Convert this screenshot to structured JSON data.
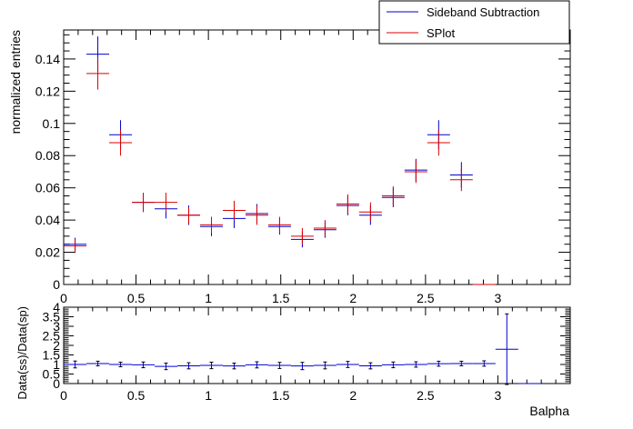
{
  "chart_data": [
    {
      "type": "scatter",
      "title": "",
      "xlabel": "",
      "ylabel": "normalized entries",
      "xlim": [
        0,
        3.5
      ],
      "ylim": [
        0,
        0.158
      ],
      "xticks": [
        "0",
        "0.5",
        "1",
        "1.5",
        "2",
        "2.5",
        "3"
      ],
      "yticks": [
        "0",
        "0.02",
        "0.04",
        "0.06",
        "0.08",
        "0.1",
        "0.12",
        "0.14"
      ],
      "bin_width": 0.157,
      "legend_position": "top-right",
      "series": [
        {
          "name": "Sideband Subtraction",
          "color": "#0000cc",
          "x": [
            0.079,
            0.236,
            0.393,
            0.55,
            0.707,
            0.864,
            1.021,
            1.178,
            1.335,
            1.492,
            1.649,
            1.806,
            1.963,
            2.12,
            2.277,
            2.434,
            2.591,
            2.748,
            2.905
          ],
          "y": [
            0.025,
            0.143,
            0.093,
            0.051,
            0.047,
            0.043,
            0.036,
            0.041,
            0.044,
            0.036,
            0.028,
            0.034,
            0.049,
            0.043,
            0.054,
            0.071,
            0.093,
            0.068,
            0.0
          ],
          "err": [
            0.004,
            0.011,
            0.009,
            0.006,
            0.006,
            0.006,
            0.006,
            0.006,
            0.006,
            0.005,
            0.005,
            0.005,
            0.006,
            0.006,
            0.006,
            0.007,
            0.009,
            0.008,
            0.0
          ]
        },
        {
          "name": "SPlot",
          "color": "#dd0000",
          "x": [
            0.079,
            0.236,
            0.393,
            0.55,
            0.707,
            0.864,
            1.021,
            1.178,
            1.335,
            1.492,
            1.649,
            1.806,
            1.963,
            2.12,
            2.277,
            2.434,
            2.591,
            2.748,
            2.905
          ],
          "y": [
            0.024,
            0.131,
            0.088,
            0.051,
            0.051,
            0.043,
            0.037,
            0.046,
            0.043,
            0.037,
            0.03,
            0.035,
            0.05,
            0.045,
            0.055,
            0.07,
            0.088,
            0.065,
            0.0
          ],
          "err": [
            0.004,
            0.01,
            0.008,
            0.006,
            0.006,
            0.005,
            0.005,
            0.006,
            0.006,
            0.005,
            0.005,
            0.005,
            0.006,
            0.006,
            0.006,
            0.007,
            0.008,
            0.007,
            0.0
          ]
        }
      ]
    },
    {
      "type": "scatter",
      "title": "",
      "xlabel": "Balpha",
      "ylabel": "Data(ss)/Data(sp)",
      "xlim": [
        0,
        3.5
      ],
      "ylim": [
        0,
        4
      ],
      "xticks": [
        "0",
        "0.5",
        "1",
        "1.5",
        "2",
        "2.5",
        "3"
      ],
      "yticks": [
        "0",
        "0.5",
        "1",
        "1.5",
        "2",
        "2.5",
        "3",
        "3.5",
        "4"
      ],
      "bin_width": 0.157,
      "series": [
        {
          "color": "#0000cc",
          "x": [
            0.079,
            0.236,
            0.393,
            0.55,
            0.707,
            0.864,
            1.021,
            1.178,
            1.335,
            1.492,
            1.649,
            1.806,
            1.963,
            2.12,
            2.277,
            2.434,
            2.591,
            2.748,
            2.905,
            3.062,
            3.219
          ],
          "y": [
            1.0,
            1.05,
            1.0,
            0.98,
            0.9,
            0.93,
            0.95,
            0.92,
            0.98,
            0.95,
            0.92,
            0.95,
            1.0,
            0.93,
            0.98,
            1.0,
            1.04,
            1.05,
            1.05,
            1.8,
            0.0
          ],
          "err": [
            0.18,
            0.12,
            0.12,
            0.15,
            0.17,
            0.16,
            0.17,
            0.15,
            0.16,
            0.16,
            0.19,
            0.18,
            0.16,
            0.16,
            0.15,
            0.14,
            0.13,
            0.12,
            0.14,
            1.85,
            0.0
          ]
        }
      ]
    }
  ]
}
